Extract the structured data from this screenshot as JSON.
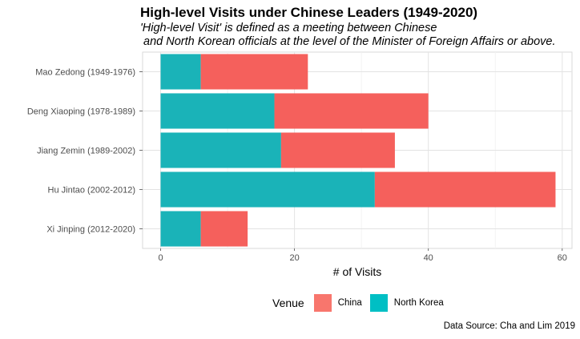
{
  "title": "High-level Visits under Chinese Leaders (1949-2020)",
  "subtitle_line1": "'High-level Visit' is defined as a meeting between Chinese",
  "subtitle_line2": " and North Korean officials at the level of the Minister of Foreign Affairs or above.",
  "caption": "Data Source: Cha and Lim 2019",
  "legend": {
    "title": "Venue",
    "items": [
      {
        "label": "China",
        "color": "#F8766D"
      },
      {
        "label": "North Korea",
        "color": "#00BFC4"
      }
    ]
  },
  "chart_data": {
    "type": "bar",
    "orientation": "horizontal",
    "stacked": true,
    "title": "High-level Visits under Chinese Leaders (1949-2020)",
    "xlabel": "# of Visits",
    "ylabel": "",
    "xlim": [
      0,
      62
    ],
    "xticks": [
      0,
      20,
      40,
      60
    ],
    "grid": true,
    "legend_position": "bottom",
    "categories": [
      "Mao Zedong (1949-1976)",
      "Deng Xiaoping (1978-1989)",
      "Jiang Zemin (1989-2002)",
      "Hu Jintao (2002-2012)",
      "Xi Jinping (2012-2020)"
    ],
    "series": [
      {
        "name": "North Korea",
        "color": "#1AB3B8",
        "values": [
          6,
          17,
          18,
          32,
          6
        ]
      },
      {
        "name": "China",
        "color": "#F5605C",
        "values": [
          16,
          23,
          17,
          27,
          7
        ]
      }
    ]
  }
}
